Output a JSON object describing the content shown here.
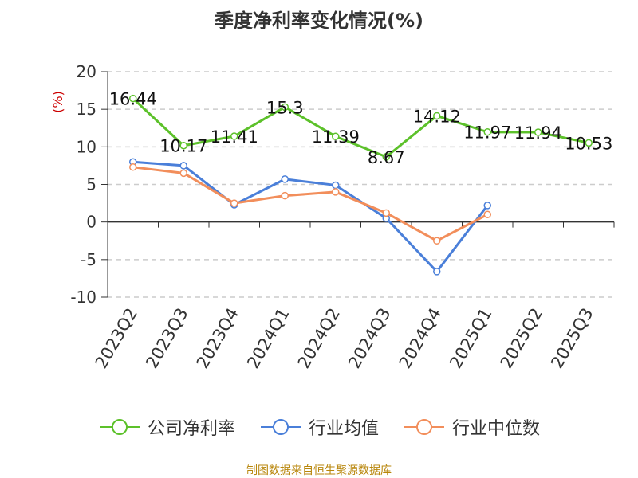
{
  "chart_data": {
    "type": "line",
    "title": "季度净利率变化情况(%)",
    "ylabel": "(%)",
    "ylim": [
      -10,
      20
    ],
    "yticks": [
      20,
      15,
      10,
      5,
      0,
      -5,
      -10
    ],
    "categories": [
      "2023Q2",
      "2023Q3",
      "2023Q4",
      "2024Q1",
      "2024Q2",
      "2024Q3",
      "2024Q4",
      "2025Q1",
      "2025Q2",
      "2025Q3"
    ],
    "series": [
      {
        "name": "公司净利率",
        "color": "#5cc12a",
        "values": [
          16.44,
          10.17,
          11.41,
          15.3,
          11.39,
          8.67,
          14.12,
          11.97,
          11.94,
          10.53
        ],
        "labels": [
          "16.44",
          "10.17",
          "11.41",
          "15.3",
          "11.39",
          "8.67",
          "14.12",
          "11.97",
          "11.94",
          "10.53"
        ]
      },
      {
        "name": "行业均值",
        "color": "#4a7fd9",
        "values": [
          8.0,
          7.5,
          2.3,
          5.7,
          4.9,
          0.5,
          -6.6,
          2.2,
          null,
          null
        ]
      },
      {
        "name": "行业中位数",
        "color": "#f28e5b",
        "values": [
          7.3,
          6.5,
          2.5,
          3.5,
          4.0,
          1.2,
          -2.5,
          1.0,
          null,
          null
        ]
      }
    ],
    "grid": true,
    "legend": "bottom"
  },
  "source_text": "制图数据来自恒生聚源数据库"
}
